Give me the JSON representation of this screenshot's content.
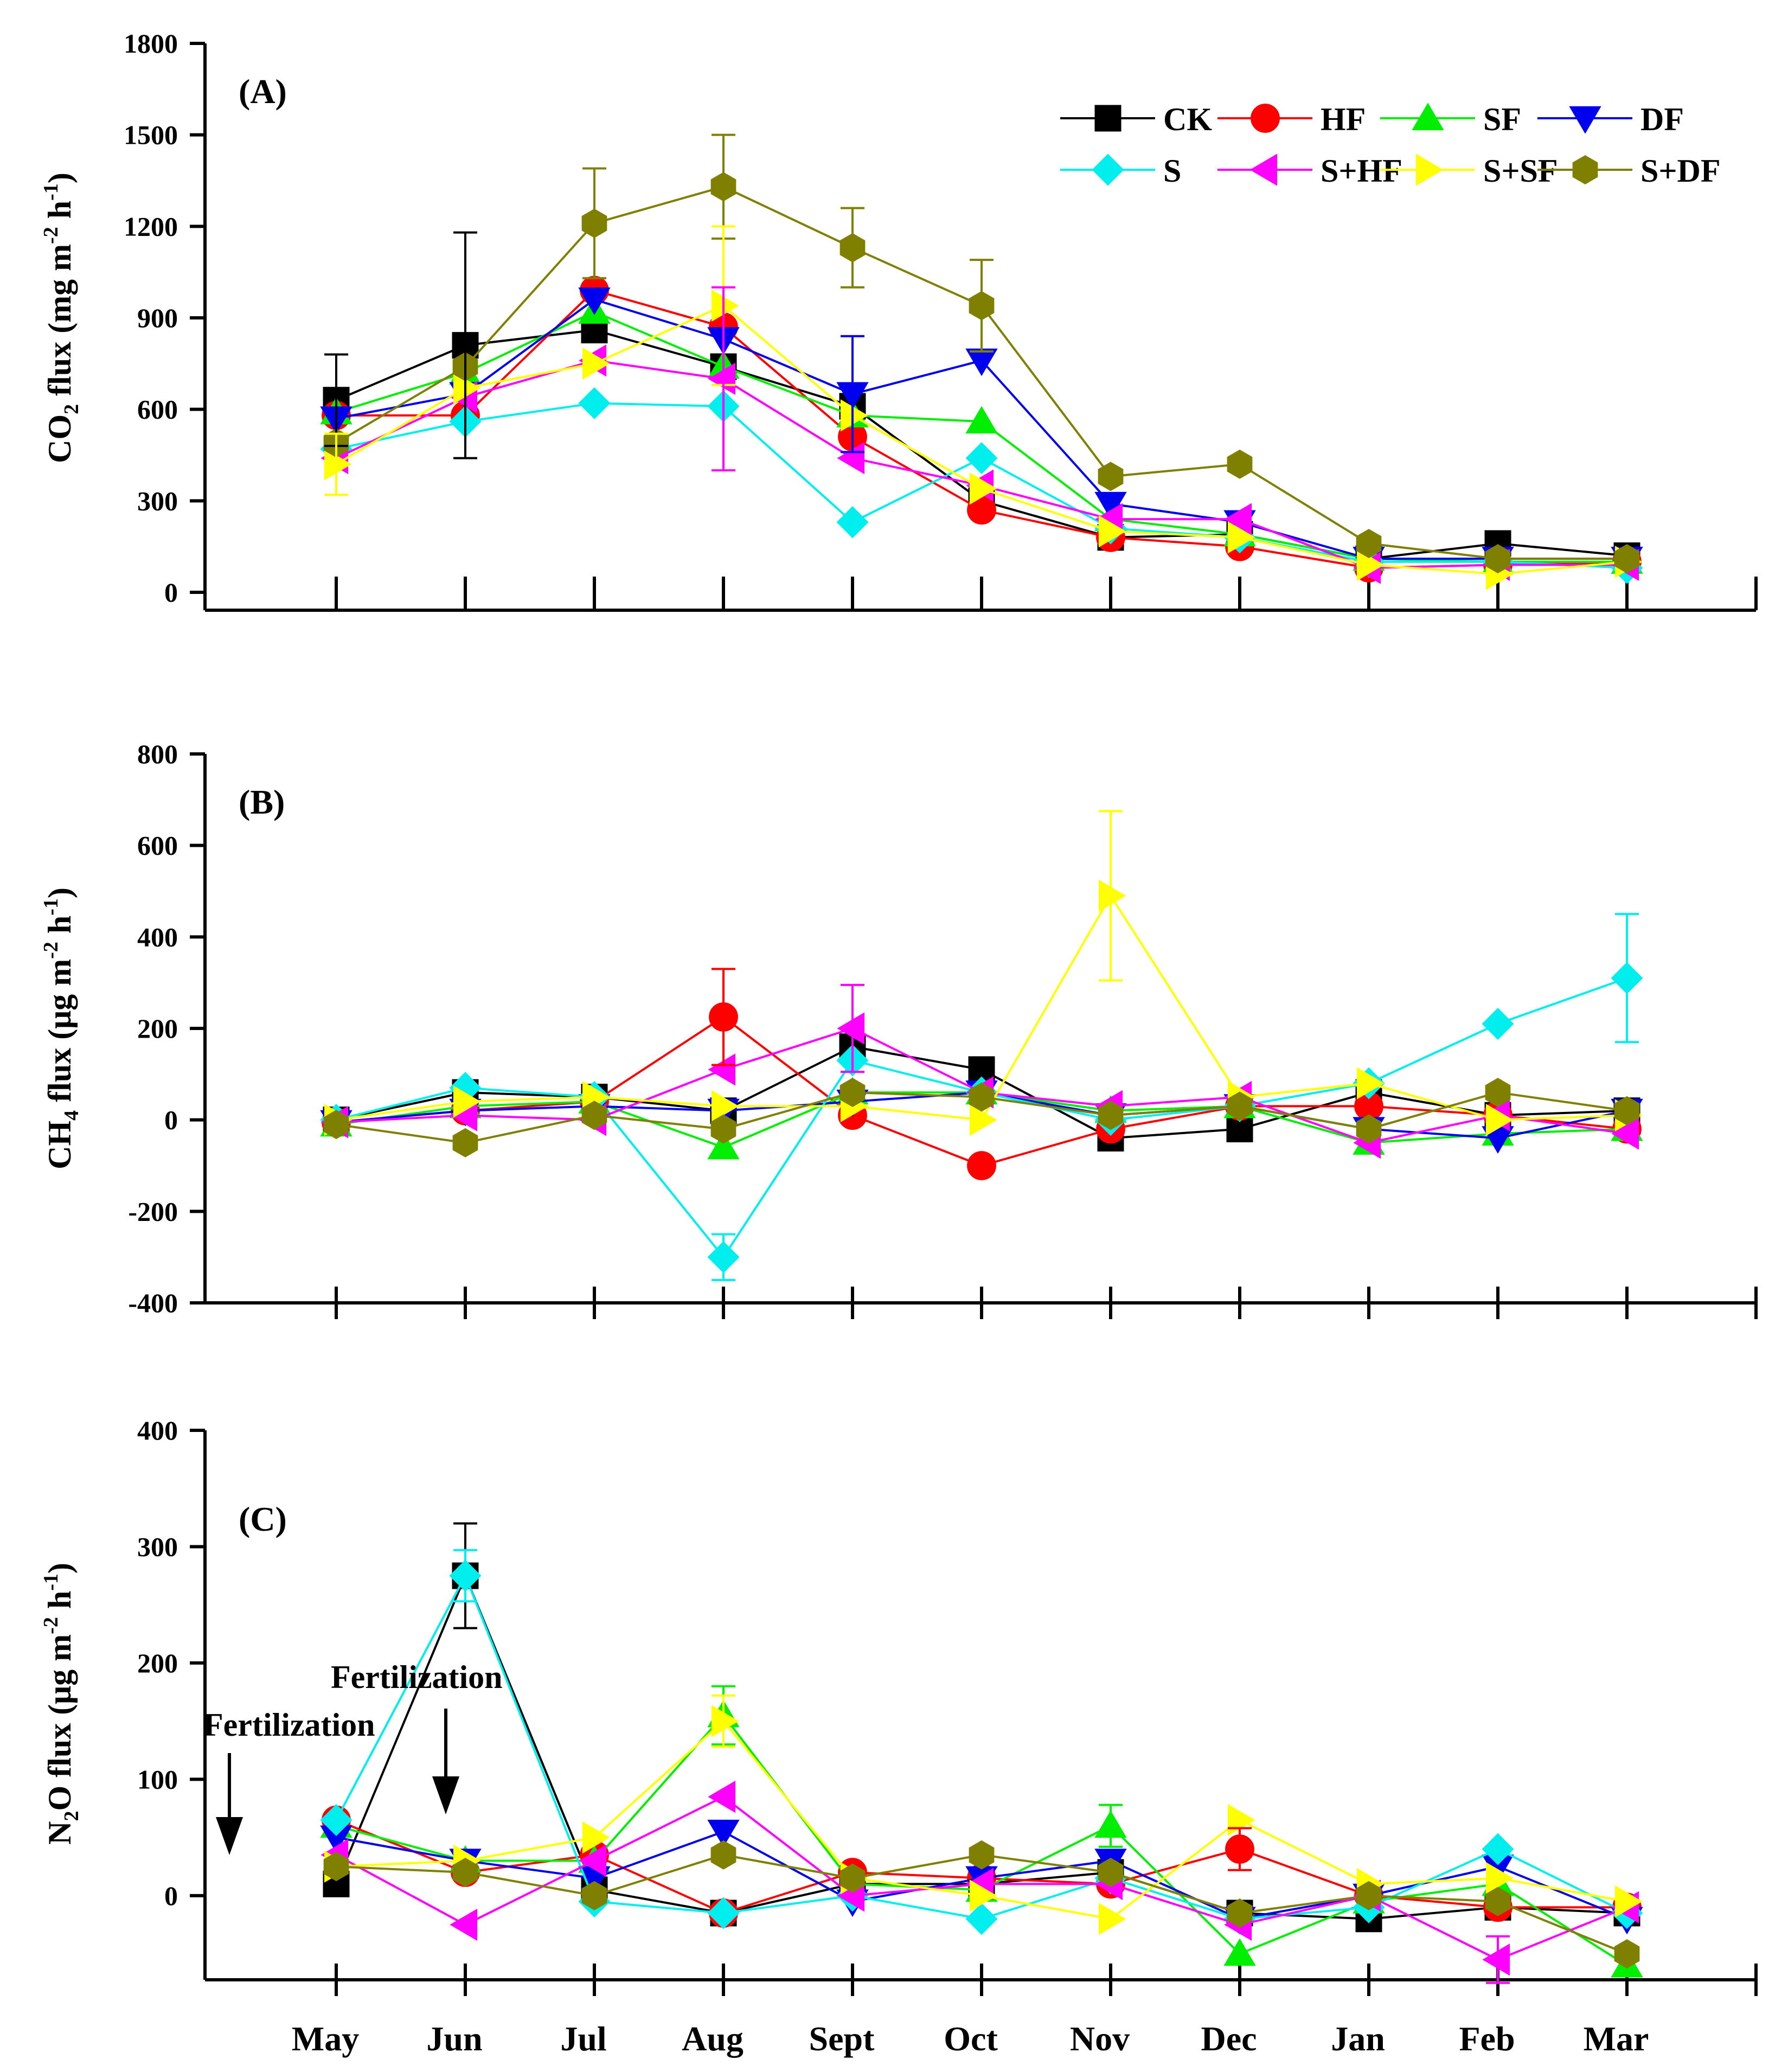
{
  "chart_data": [
    {
      "type": "line",
      "panel_label": "(A)",
      "ylabel_main": "CO",
      "ylabel_sub": "2",
      "ylabel_rest": " flux (mg m",
      "ylabel_sup1": "-2",
      "ylabel_mid": " h",
      "ylabel_sup2": "-1",
      "ylabel_end": ")",
      "ylim": [
        0,
        1800
      ],
      "yticks": [
        "0",
        "300",
        "600",
        "900",
        "1200",
        "1500",
        "1800"
      ],
      "categories": [
        "May",
        "Jun",
        "Jul",
        "Aug",
        "Sept",
        "Oct",
        "Nov",
        "Dec",
        "Jan",
        "Feb",
        "Mar"
      ],
      "series": [
        {
          "name": "CK",
          "values": [
            630,
            810,
            860,
            740,
            610,
            300,
            180,
            190,
            110,
            160,
            120
          ]
        },
        {
          "name": "HF",
          "values": [
            580,
            580,
            990,
            870,
            510,
            270,
            180,
            150,
            80,
            90,
            100
          ]
        },
        {
          "name": "SF",
          "values": [
            590,
            720,
            920,
            740,
            580,
            560,
            240,
            190,
            110,
            100,
            100
          ]
        },
        {
          "name": "DF",
          "values": [
            570,
            650,
            960,
            830,
            650,
            760,
            290,
            230,
            110,
            110,
            110
          ]
        },
        {
          "name": "S",
          "values": [
            470,
            560,
            620,
            610,
            230,
            440,
            210,
            180,
            100,
            100,
            80
          ]
        },
        {
          "name": "S+HF",
          "values": [
            440,
            640,
            760,
            700,
            440,
            350,
            240,
            240,
            80,
            90,
            90
          ]
        },
        {
          "name": "S+SF",
          "values": [
            420,
            670,
            750,
            940,
            580,
            340,
            200,
            180,
            90,
            60,
            100
          ]
        },
        {
          "name": "S+DF",
          "values": [
            490,
            740,
            1210,
            1330,
            1130,
            940,
            380,
            420,
            160,
            110,
            110
          ]
        }
      ]
    },
    {
      "type": "line",
      "panel_label": "(B)",
      "ylabel_main": "CH",
      "ylabel_sub": "4",
      "ylabel_rest": "  flux (μg m",
      "ylabel_sup1": "-2",
      "ylabel_mid": " h",
      "ylabel_sup2": "-1",
      "ylabel_end": ")",
      "ylim": [
        -400,
        800
      ],
      "yticks": [
        "-400",
        "-200",
        "0",
        "200",
        "400",
        "600",
        "800"
      ],
      "categories": [
        "May",
        "Jun",
        "Jul",
        "Aug",
        "Sept",
        "Oct",
        "Nov",
        "Dec",
        "Jan",
        "Feb",
        "Mar"
      ],
      "series": [
        {
          "name": "CK",
          "values": [
            0,
            60,
            50,
            20,
            160,
            110,
            -40,
            -20,
            60,
            10,
            20
          ]
        },
        {
          "name": "HF",
          "values": [
            -5,
            20,
            40,
            225,
            10,
            -100,
            -20,
            30,
            30,
            10,
            -20
          ]
        },
        {
          "name": "SF",
          "values": [
            -10,
            30,
            40,
            -60,
            60,
            60,
            20,
            30,
            -50,
            -30,
            -20
          ]
        },
        {
          "name": "DF",
          "values": [
            -5,
            20,
            30,
            20,
            40,
            60,
            10,
            30,
            -20,
            -40,
            20
          ]
        },
        {
          "name": "S",
          "values": [
            0,
            70,
            50,
            -300,
            130,
            60,
            0,
            30,
            80,
            210,
            310
          ]
        },
        {
          "name": "S+HF",
          "values": [
            -5,
            10,
            0,
            110,
            200,
            60,
            30,
            50,
            -50,
            10,
            -30
          ]
        },
        {
          "name": "S+SF",
          "values": [
            0,
            40,
            50,
            30,
            30,
            0,
            490,
            50,
            80,
            0,
            10
          ]
        },
        {
          "name": "S+DF",
          "values": [
            -10,
            -50,
            10,
            -20,
            60,
            50,
            10,
            30,
            -20,
            60,
            20
          ]
        }
      ]
    },
    {
      "type": "line",
      "panel_label": "(C)",
      "ylabel_main": "N",
      "ylabel_sub": "2",
      "ylabel_rest": "O  flux (μg m",
      "ylabel_sup1": "-2",
      "ylabel_mid": " h",
      "ylabel_sup2": "-1",
      "ylabel_end": ")",
      "ylim": [
        -70,
        400
      ],
      "yticks": [
        "0",
        "100",
        "200",
        "300",
        "400"
      ],
      "categories": [
        "May",
        "Jun",
        "Jul",
        "Aug",
        "Sept",
        "Oct",
        "Nov",
        "Dec",
        "Jan",
        "Feb",
        "Mar"
      ],
      "annotations": [
        "Fertilization",
        "Fertilization"
      ],
      "series": [
        {
          "name": "CK",
          "values": [
            10,
            275,
            5,
            -15,
            10,
            10,
            20,
            -15,
            -20,
            -10,
            -15
          ]
        },
        {
          "name": "HF",
          "values": [
            65,
            20,
            35,
            -15,
            20,
            15,
            10,
            40,
            0,
            -10,
            -10
          ]
        },
        {
          "name": "SF",
          "values": [
            60,
            30,
            30,
            155,
            10,
            5,
            60,
            -50,
            -5,
            10,
            -60
          ]
        },
        {
          "name": "DF",
          "values": [
            50,
            30,
            15,
            55,
            -5,
            15,
            30,
            -20,
            0,
            25,
            -20
          ]
        },
        {
          "name": "S",
          "values": [
            65,
            275,
            -5,
            -15,
            0,
            -20,
            15,
            -20,
            -10,
            40,
            -15
          ]
        },
        {
          "name": "S+HF",
          "values": [
            35,
            -25,
            30,
            85,
            0,
            10,
            10,
            -25,
            0,
            -55,
            -10
          ]
        },
        {
          "name": "S+SF",
          "values": [
            25,
            30,
            50,
            150,
            15,
            0,
            -20,
            65,
            10,
            15,
            -5
          ]
        },
        {
          "name": "S+DF",
          "values": [
            25,
            20,
            0,
            35,
            15,
            35,
            20,
            -15,
            0,
            -5,
            -50
          ]
        }
      ]
    }
  ],
  "legend": [
    {
      "name": "CK",
      "color": "#000000",
      "marker": "square"
    },
    {
      "name": "HF",
      "color": "#ff0000",
      "marker": "circle"
    },
    {
      "name": "SF",
      "color": "#00ee00",
      "marker": "triangle-up"
    },
    {
      "name": "DF",
      "color": "#0000ee",
      "marker": "triangle-down"
    },
    {
      "name": "S",
      "color": "#00eeee",
      "marker": "diamond"
    },
    {
      "name": "S+HF",
      "color": "#ff00ff",
      "marker": "triangle-left"
    },
    {
      "name": "S+SF",
      "color": "#ffff00",
      "marker": "triangle-right"
    },
    {
      "name": "S+DF",
      "color": "#808000",
      "marker": "hexagon"
    }
  ]
}
